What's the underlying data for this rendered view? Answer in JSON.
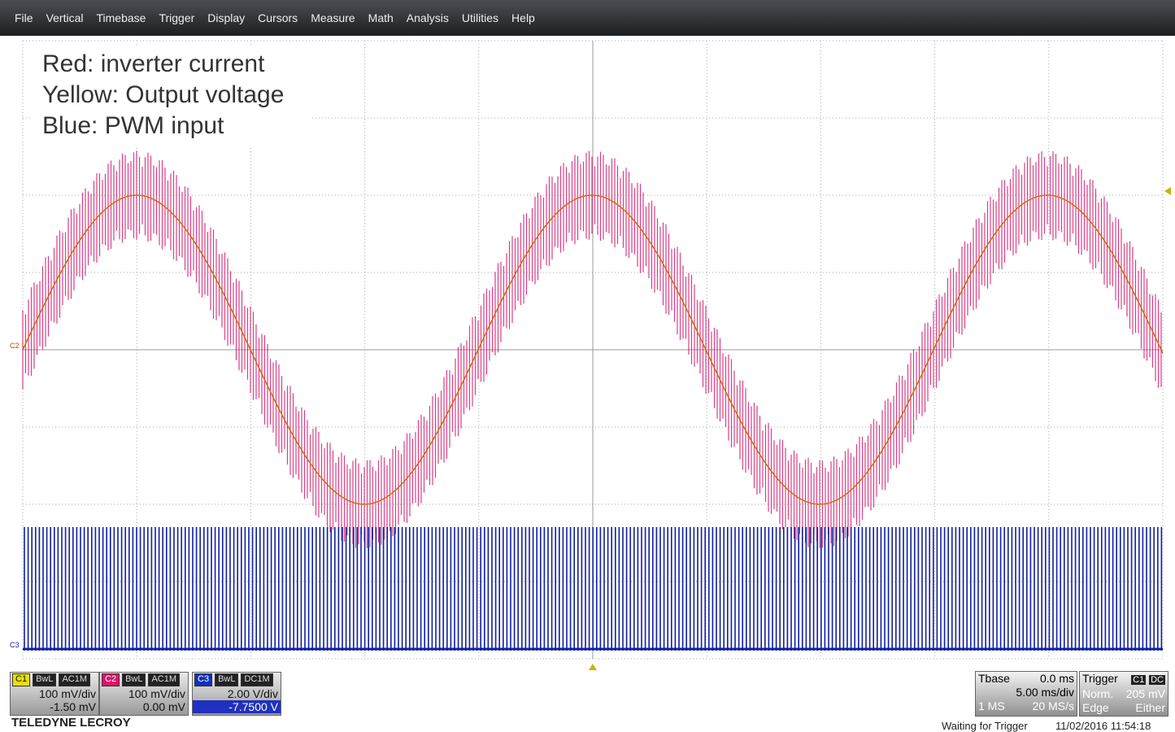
{
  "menu": [
    "File",
    "Vertical",
    "Timebase",
    "Trigger",
    "Display",
    "Cursors",
    "Measure",
    "Math",
    "Analysis",
    "Utilities",
    "Help"
  ],
  "annotation": [
    "Red: inverter current",
    "Yellow: Output voltage",
    "Blue: PWM input"
  ],
  "markers": {
    "c2": "C2",
    "c3": "C3"
  },
  "channels": [
    {
      "id": "C1",
      "bandwidth": "BwL",
      "coupling": "AC1M",
      "scale": "100 mV/div",
      "offset": "-1.50 mV"
    },
    {
      "id": "C2",
      "bandwidth": "BwL",
      "coupling": "AC1M",
      "scale": "100 mV/div",
      "offset": "0.00 mV"
    },
    {
      "id": "C3",
      "bandwidth": "BwL",
      "coupling": "DC1M",
      "scale": "2.00 V/div",
      "offset": "-7.7500 V"
    }
  ],
  "brand": "TELEDYNE LECROY",
  "timebase": {
    "label": "Tbase",
    "delay": "0.0 ms",
    "scale": "5.00 ms/div",
    "points": "1 MS",
    "rate": "20 MS/s"
  },
  "trigger": {
    "label": "Trigger",
    "source": "C1",
    "coupling": "DC",
    "mode": "Norm.",
    "level": "205 mV",
    "type": "Edge",
    "slope": "Either"
  },
  "status": "Waiting for Trigger",
  "datetime": "11/02/2016 11:54:18"
}
